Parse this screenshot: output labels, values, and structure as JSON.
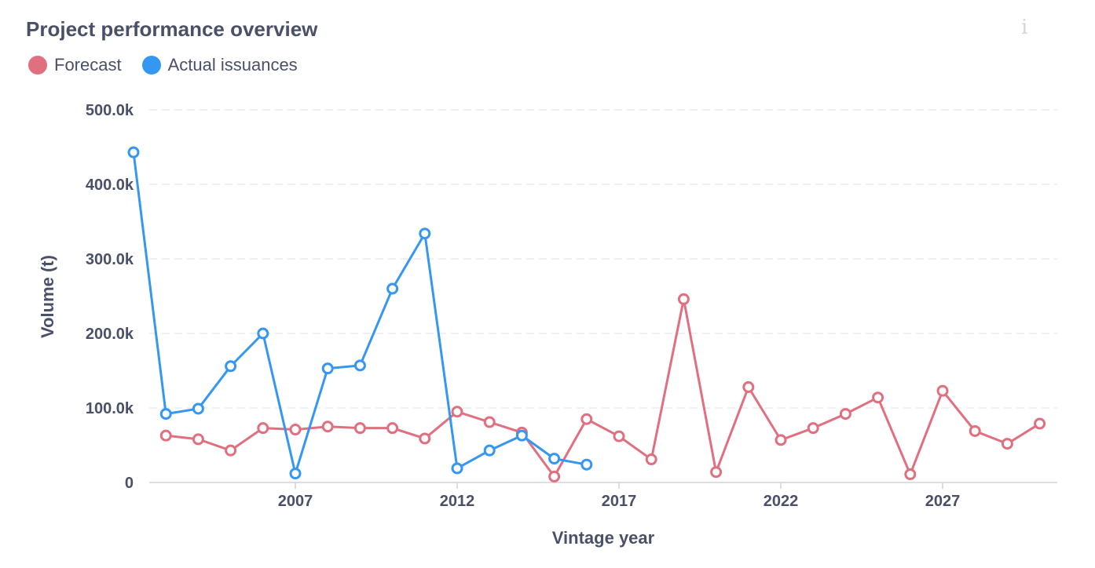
{
  "header": {
    "title": "Project performance overview",
    "info_icon": "i"
  },
  "chart_data": {
    "type": "line",
    "title": "Project performance overview",
    "xlabel": "Vintage year",
    "ylabel": "Volume (t)",
    "xlim": [
      2003,
      2031
    ],
    "ylim": [
      0,
      500000
    ],
    "grid": true,
    "legend_position": "top-left",
    "y_ticks": [
      {
        "value": 0,
        "label": "0"
      },
      {
        "value": 100000,
        "label": "100.0k"
      },
      {
        "value": 200000,
        "label": "200.0k"
      },
      {
        "value": 300000,
        "label": "300.0k"
      },
      {
        "value": 400000,
        "label": "400.0k"
      },
      {
        "value": 500000,
        "label": "500.0k"
      }
    ],
    "x_ticks": [
      {
        "value": 2007,
        "label": "2007"
      },
      {
        "value": 2012,
        "label": "2012"
      },
      {
        "value": 2017,
        "label": "2017"
      },
      {
        "value": 2022,
        "label": "2022"
      },
      {
        "value": 2027,
        "label": "2027"
      }
    ],
    "series": [
      {
        "name": "Forecast",
        "color": "#e0707f",
        "x": [
          2003,
          2004,
          2005,
          2006,
          2007,
          2008,
          2009,
          2010,
          2011,
          2012,
          2013,
          2014,
          2015,
          2016,
          2017,
          2018,
          2019,
          2020,
          2021,
          2022,
          2023,
          2024,
          2025,
          2026,
          2027,
          2028,
          2029,
          2030,
          2031
        ],
        "values": [
          63000,
          58000,
          43000,
          73000,
          71000,
          75000,
          73000,
          73000,
          59000,
          95000,
          81000,
          67000,
          8000,
          85000,
          62000,
          31000,
          246000,
          14000,
          128000,
          57000,
          73000,
          92000,
          114000,
          11000,
          123000,
          69000,
          52000,
          79000,
          null
        ]
      },
      {
        "name": "Actual issuances",
        "color": "#3597f1",
        "x": [
          2002,
          2003,
          2004,
          2005,
          2006,
          2007,
          2008,
          2009,
          2010,
          2011,
          2012,
          2013,
          2014,
          2015,
          2016
        ],
        "values": [
          443000,
          92000,
          99000,
          156000,
          200000,
          12000,
          153000,
          157000,
          260000,
          334000,
          19000,
          43000,
          63000,
          32000,
          24000
        ]
      }
    ]
  }
}
